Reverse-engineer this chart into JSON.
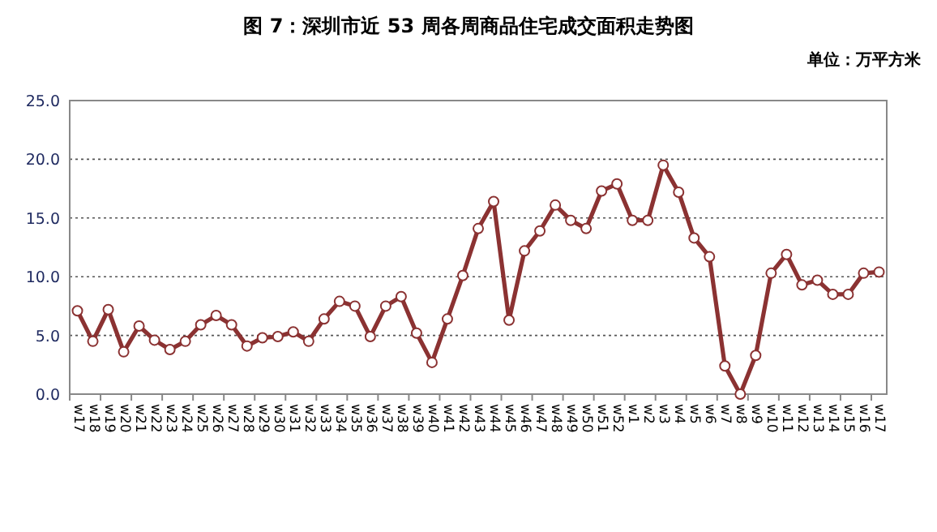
{
  "chart_data": {
    "type": "line",
    "title": "图 7：深圳市近 53 周各周商品住宅成交面积走势图",
    "annotations": [
      "单位：万平方米"
    ],
    "categories": [
      "w17",
      "w18",
      "w19",
      "w20",
      "w21",
      "w22",
      "w23",
      "w24",
      "w25",
      "w26",
      "w27",
      "w28",
      "w29",
      "w30",
      "w31",
      "w32",
      "w33",
      "w34",
      "w35",
      "w36",
      "w37",
      "w38",
      "w39",
      "w40",
      "w41",
      "w42",
      "w43",
      "w44",
      "w45",
      "w46",
      "w47",
      "w48",
      "w49",
      "w50",
      "w51",
      "w52",
      "w1",
      "w2",
      "w3",
      "w4",
      "w5",
      "w6",
      "w7",
      "w8",
      "w9",
      "w10",
      "w11",
      "w12",
      "w13",
      "w14",
      "w15",
      "w16",
      "w17"
    ],
    "series": [
      {
        "color": "#8b3232",
        "values": [
          7.1,
          4.5,
          7.2,
          3.6,
          5.8,
          4.6,
          3.8,
          4.5,
          5.9,
          6.7,
          5.9,
          4.1,
          4.8,
          4.9,
          5.3,
          4.5,
          6.4,
          7.9,
          7.5,
          4.9,
          7.5,
          8.3,
          5.2,
          2.7,
          6.4,
          10.1,
          14.1,
          16.4,
          6.3,
          12.2,
          13.9,
          16.1,
          14.8,
          14.1,
          17.3,
          17.9,
          14.8,
          14.8,
          19.5,
          17.2,
          13.3,
          11.7,
          2.4,
          0.0,
          3.3,
          10.3,
          11.9,
          9.3,
          9.7,
          8.5,
          8.5,
          10.3,
          10.4
        ]
      }
    ],
    "ylim": [
      0,
      25
    ],
    "yticks": [
      {
        "value": 0,
        "label": "0.0"
      },
      {
        "value": 5,
        "label": "5.0"
      },
      {
        "value": 10,
        "label": "10.0"
      },
      {
        "value": 15,
        "label": "15.0"
      },
      {
        "value": 20,
        "label": "20.0"
      },
      {
        "value": 25,
        "label": "25.0"
      }
    ],
    "grid": "y",
    "marker": "circle",
    "line_style": "solid"
  }
}
